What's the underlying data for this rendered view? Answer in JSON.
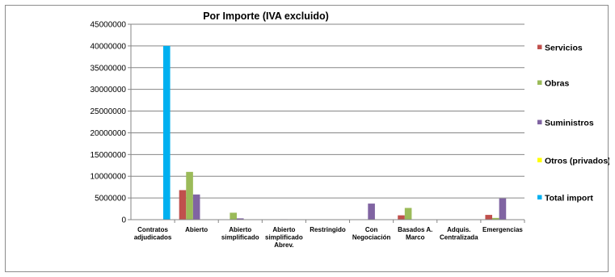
{
  "chart_data": {
    "type": "bar",
    "title": "Por Importe (IVA excluido)",
    "xlabel": "",
    "ylabel": "",
    "ylim": [
      0,
      45000000
    ],
    "yticks": [
      "0",
      "5000000",
      "10000000",
      "15000000",
      "20000000",
      "25000000",
      "30000000",
      "35000000",
      "40000000",
      "45000000"
    ],
    "grid": true,
    "legend_position": "right",
    "categories": [
      [
        "Contratos",
        "adjudicados"
      ],
      [
        "Abierto"
      ],
      [
        "Abierto",
        "simplificado"
      ],
      [
        "Abierto",
        "simplificado",
        "Abrev."
      ],
      [
        "Restringido"
      ],
      [
        "Con",
        "Negociación"
      ],
      [
        "Basados A.",
        "Marco"
      ],
      [
        "Adquis.",
        "Centralizada"
      ],
      [
        "Emergencias"
      ]
    ],
    "series": [
      {
        "name": "Servicios",
        "color": "#c0504d",
        "values": [
          0,
          6800000,
          0,
          0,
          0,
          50000,
          1000000,
          0,
          1100000
        ]
      },
      {
        "name": "Obras",
        "color": "#9bbb59",
        "values": [
          0,
          11000000,
          1600000,
          0,
          0,
          0,
          2700000,
          0,
          400000
        ]
      },
      {
        "name": "Suministros",
        "color": "#8064a2",
        "values": [
          0,
          5800000,
          300000,
          100000,
          0,
          3700000,
          0,
          0,
          4900000
        ]
      },
      {
        "name": "Otros (privados)",
        "color": "#ffff00",
        "values": [
          0,
          0,
          0,
          0,
          0,
          0,
          0,
          0,
          0
        ]
      },
      {
        "name": "Total import",
        "color": "#00b0f0",
        "values": [
          40000000,
          0,
          0,
          0,
          0,
          0,
          0,
          0,
          0
        ]
      }
    ]
  }
}
